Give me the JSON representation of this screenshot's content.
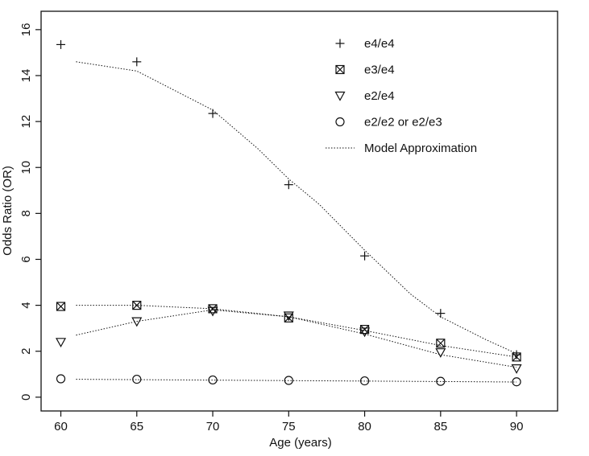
{
  "chart_data": {
    "type": "scatter",
    "title": "",
    "xlabel": "Age (years)",
    "ylabel": "Odds Ratio (OR)",
    "xlim": [
      58.7,
      92.7
    ],
    "ylim": [
      -0.6,
      16.8
    ],
    "xticks": [
      60,
      65,
      70,
      75,
      80,
      85,
      90
    ],
    "yticks": [
      0,
      2,
      4,
      6,
      8,
      10,
      12,
      14,
      16
    ],
    "grid": false,
    "legend_position": "top-right",
    "series": [
      {
        "name": "e4/e4",
        "marker": "plus",
        "points": [
          [
            60,
            15.35
          ],
          [
            65,
            14.6
          ],
          [
            70,
            12.35
          ],
          [
            75,
            9.25
          ],
          [
            80,
            6.15
          ],
          [
            85,
            3.65
          ],
          [
            90,
            1.85
          ]
        ],
        "model": [
          [
            61,
            14.6
          ],
          [
            65,
            14.2
          ],
          [
            70,
            12.5
          ],
          [
            73,
            10.8
          ],
          [
            75,
            9.5
          ],
          [
            77,
            8.4
          ],
          [
            80,
            6.4
          ],
          [
            83,
            4.5
          ],
          [
            85,
            3.5
          ],
          [
            88,
            2.5
          ],
          [
            90,
            1.9
          ]
        ]
      },
      {
        "name": "e3/e4",
        "marker": "boxed-x",
        "points": [
          [
            60,
            3.95
          ],
          [
            65,
            4.0
          ],
          [
            70,
            3.85
          ],
          [
            75,
            3.45
          ],
          [
            80,
            2.95
          ],
          [
            85,
            2.35
          ],
          [
            90,
            1.75
          ]
        ],
        "model": [
          [
            61,
            4.0
          ],
          [
            65,
            4.0
          ],
          [
            70,
            3.85
          ],
          [
            75,
            3.5
          ],
          [
            80,
            2.9
          ],
          [
            85,
            2.25
          ],
          [
            90,
            1.75
          ]
        ]
      },
      {
        "name": "e2/e4",
        "marker": "triangle-down",
        "points": [
          [
            60,
            2.4
          ],
          [
            65,
            3.3
          ],
          [
            70,
            3.75
          ],
          [
            75,
            3.55
          ],
          [
            80,
            2.85
          ],
          [
            85,
            1.95
          ],
          [
            90,
            1.25
          ]
        ],
        "model": [
          [
            61,
            2.7
          ],
          [
            65,
            3.3
          ],
          [
            70,
            3.8
          ],
          [
            75,
            3.5
          ],
          [
            80,
            2.75
          ],
          [
            85,
            1.85
          ],
          [
            90,
            1.3
          ]
        ]
      },
      {
        "name": "e2/e2 or e2/e3",
        "marker": "circle",
        "points": [
          [
            60,
            0.8
          ],
          [
            65,
            0.78
          ],
          [
            70,
            0.75
          ],
          [
            75,
            0.73
          ],
          [
            80,
            0.71
          ],
          [
            85,
            0.69
          ],
          [
            90,
            0.67
          ]
        ],
        "model": [
          [
            61,
            0.78
          ],
          [
            90,
            0.66
          ]
        ]
      }
    ],
    "model_label": "Model Approximation"
  },
  "colors": {
    "ink": "#111111",
    "background": "#ffffff"
  }
}
